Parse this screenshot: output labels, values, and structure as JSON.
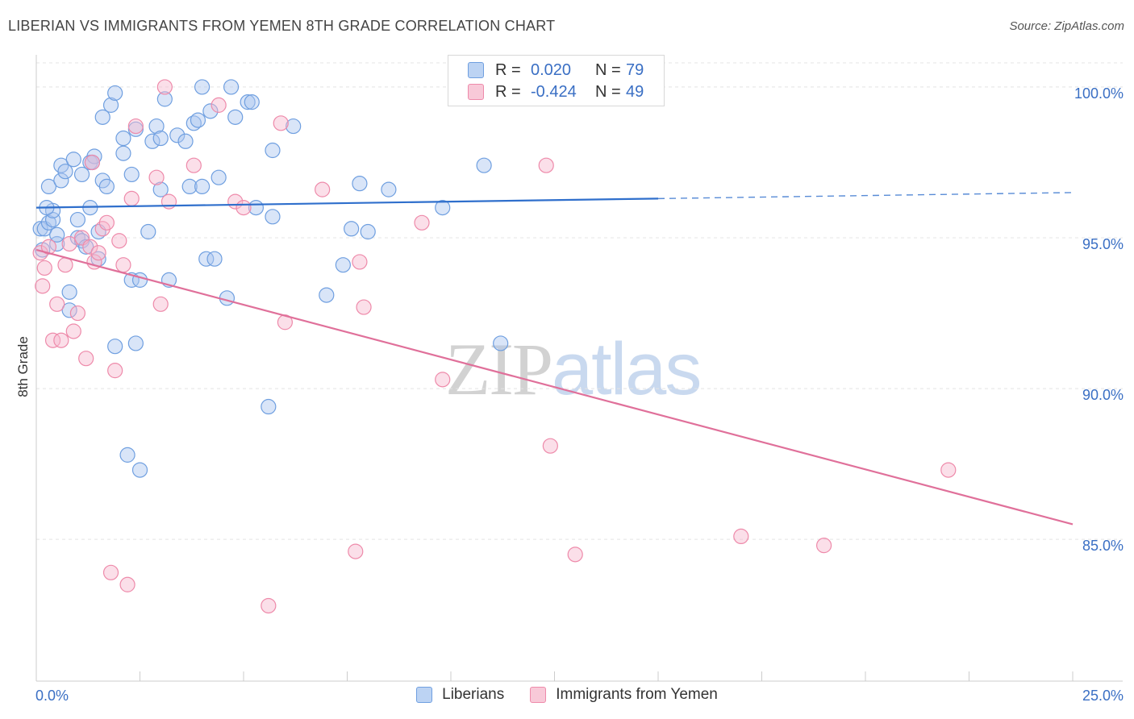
{
  "title": "LIBERIAN VS IMMIGRANTS FROM YEMEN 8TH GRADE CORRELATION CHART",
  "source": "Source: ZipAtlas.com",
  "watermark": {
    "zip": "ZIP",
    "atlas": "atlas"
  },
  "legend": {
    "rows": [
      {
        "r_label": "R =",
        "r_value": "0.020",
        "n_label": "N =",
        "n_value": "79"
      },
      {
        "r_label": "R =",
        "r_value": "-0.424",
        "n_label": "N =",
        "n_value": "49"
      }
    ]
  },
  "chart_data": {
    "type": "scatter",
    "title": "LIBERIAN VS IMMIGRANTS FROM YEMEN 8TH GRADE CORRELATION CHART",
    "xlabel": "",
    "ylabel": "8th Grade",
    "xlim": [
      0,
      25
    ],
    "ylim": [
      80.3,
      100.8
    ],
    "x_tick_labels": [
      "0.0%",
      "25.0%"
    ],
    "y_ticks": [
      100,
      95,
      90,
      85
    ],
    "y_tick_labels": [
      "100.0%",
      "95.0%",
      "90.0%",
      "85.0%"
    ],
    "grid": true,
    "legend_position": "top-center",
    "colors": {
      "liberians": "#6f9fe0",
      "yemen": "#ee8aaa",
      "liberians_line": "#2f6fcc",
      "yemen_line": "#e0709a",
      "tick_text": "#3a6fc4"
    },
    "series": [
      {
        "name": "Liberians",
        "r": 0.02,
        "n": 79,
        "trend": {
          "x": [
            0,
            15.0
          ],
          "y": [
            96.0,
            96.3
          ],
          "dashed_to": [
            25.0,
            96.5
          ]
        },
        "points": [
          [
            0.1,
            95.3
          ],
          [
            0.2,
            95.3
          ],
          [
            0.3,
            96.7
          ],
          [
            0.3,
            95.5
          ],
          [
            0.4,
            95.6
          ],
          [
            0.4,
            95.9
          ],
          [
            0.5,
            94.8
          ],
          [
            0.5,
            95.1
          ],
          [
            0.6,
            96.9
          ],
          [
            0.6,
            97.4
          ],
          [
            0.7,
            97.2
          ],
          [
            0.8,
            93.2
          ],
          [
            0.8,
            92.6
          ],
          [
            0.9,
            97.6
          ],
          [
            1.0,
            95.6
          ],
          [
            1.0,
            95.0
          ],
          [
            1.1,
            97.1
          ],
          [
            1.1,
            94.9
          ],
          [
            1.2,
            94.7
          ],
          [
            1.3,
            96.0
          ],
          [
            1.3,
            97.5
          ],
          [
            1.4,
            97.7
          ],
          [
            1.5,
            95.2
          ],
          [
            1.5,
            94.3
          ],
          [
            1.6,
            99.0
          ],
          [
            1.6,
            96.9
          ],
          [
            1.7,
            96.7
          ],
          [
            1.8,
            99.4
          ],
          [
            1.9,
            99.8
          ],
          [
            1.9,
            91.4
          ],
          [
            2.1,
            98.3
          ],
          [
            2.1,
            97.8
          ],
          [
            2.2,
            87.8
          ],
          [
            2.3,
            97.1
          ],
          [
            2.3,
            93.6
          ],
          [
            2.4,
            91.5
          ],
          [
            2.4,
            98.6
          ],
          [
            2.5,
            93.6
          ],
          [
            2.5,
            87.3
          ],
          [
            2.7,
            95.2
          ],
          [
            2.8,
            98.2
          ],
          [
            2.9,
            98.7
          ],
          [
            3.0,
            96.6
          ],
          [
            3.0,
            98.3
          ],
          [
            3.1,
            99.6
          ],
          [
            3.2,
            93.6
          ],
          [
            3.4,
            98.4
          ],
          [
            3.6,
            98.2
          ],
          [
            3.7,
            96.7
          ],
          [
            3.8,
            98.8
          ],
          [
            3.9,
            98.9
          ],
          [
            4.0,
            96.7
          ],
          [
            4.0,
            100.0
          ],
          [
            4.1,
            94.3
          ],
          [
            4.2,
            99.2
          ],
          [
            4.3,
            94.3
          ],
          [
            4.4,
            97.0
          ],
          [
            4.6,
            93.0
          ],
          [
            4.7,
            100.0
          ],
          [
            4.8,
            99.0
          ],
          [
            5.1,
            99.5
          ],
          [
            5.2,
            99.5
          ],
          [
            5.3,
            96.0
          ],
          [
            5.6,
            89.4
          ],
          [
            5.7,
            95.7
          ],
          [
            5.7,
            97.9
          ],
          [
            6.2,
            98.7
          ],
          [
            7.0,
            93.1
          ],
          [
            7.4,
            94.1
          ],
          [
            7.6,
            95.3
          ],
          [
            7.8,
            96.8
          ],
          [
            8.0,
            95.2
          ],
          [
            8.5,
            96.6
          ],
          [
            9.8,
            96.0
          ],
          [
            10.8,
            97.4
          ],
          [
            11.2,
            91.5
          ],
          [
            0.15,
            94.6
          ],
          [
            0.25,
            96.0
          ],
          [
            1.35,
            97.5
          ]
        ]
      },
      {
        "name": "Immigrants from Yemen",
        "r": -0.424,
        "n": 49,
        "trend": {
          "x": [
            0,
            25.0
          ],
          "y": [
            94.6,
            85.5
          ]
        },
        "points": [
          [
            0.1,
            94.5
          ],
          [
            0.15,
            93.4
          ],
          [
            0.2,
            94.0
          ],
          [
            0.3,
            94.7
          ],
          [
            0.4,
            91.6
          ],
          [
            0.5,
            92.8
          ],
          [
            0.6,
            91.6
          ],
          [
            0.7,
            94.1
          ],
          [
            0.8,
            94.8
          ],
          [
            0.9,
            91.9
          ],
          [
            1.0,
            92.5
          ],
          [
            1.1,
            95.0
          ],
          [
            1.2,
            91.0
          ],
          [
            1.3,
            94.7
          ],
          [
            1.35,
            97.5
          ],
          [
            1.4,
            94.2
          ],
          [
            1.5,
            94.5
          ],
          [
            1.6,
            95.3
          ],
          [
            1.7,
            95.5
          ],
          [
            1.8,
            83.9
          ],
          [
            1.9,
            90.6
          ],
          [
            2.0,
            94.9
          ],
          [
            2.1,
            94.1
          ],
          [
            2.2,
            83.5
          ],
          [
            2.3,
            96.3
          ],
          [
            2.4,
            98.7
          ],
          [
            2.9,
            97.0
          ],
          [
            3.0,
            92.8
          ],
          [
            3.1,
            100.0
          ],
          [
            3.2,
            96.2
          ],
          [
            3.8,
            97.4
          ],
          [
            4.4,
            99.4
          ],
          [
            4.8,
            96.2
          ],
          [
            5.0,
            96.0
          ],
          [
            5.6,
            82.8
          ],
          [
            5.9,
            98.8
          ],
          [
            6.0,
            92.2
          ],
          [
            6.9,
            96.6
          ],
          [
            7.7,
            84.6
          ],
          [
            7.8,
            94.2
          ],
          [
            7.9,
            92.7
          ],
          [
            9.3,
            95.5
          ],
          [
            9.8,
            90.3
          ],
          [
            12.3,
            97.4
          ],
          [
            12.4,
            88.1
          ],
          [
            13.0,
            84.5
          ],
          [
            17.0,
            85.1
          ],
          [
            19.0,
            84.8
          ],
          [
            22.0,
            87.3
          ]
        ]
      }
    ]
  },
  "bottom_legend": [
    {
      "label": "Liberians"
    },
    {
      "label": "Immigrants from Yemen"
    }
  ]
}
